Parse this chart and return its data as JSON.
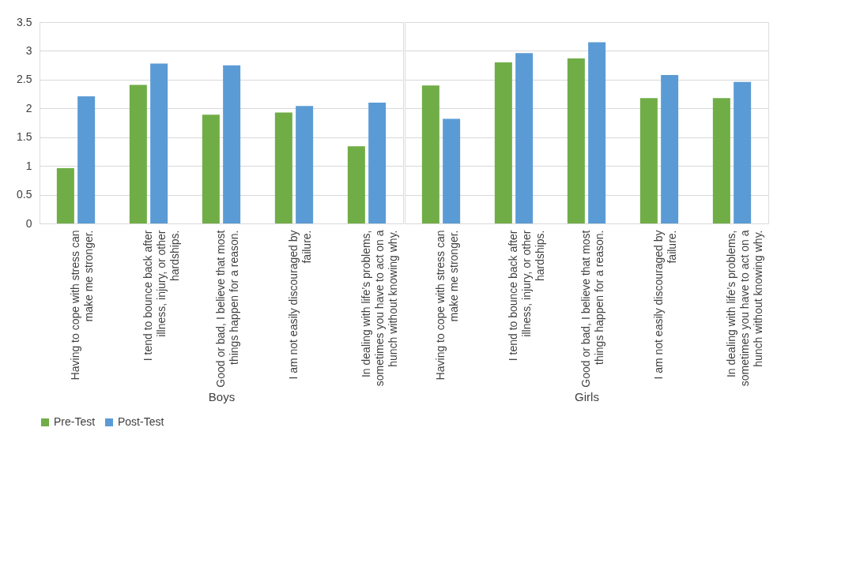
{
  "chart_data": [
    {
      "type": "bar",
      "xlabel": "Boys",
      "categories": [
        "Having to cope with stress can make me stronger.",
        "I tend to bounce back after illness, injury, or other hardships.",
        "Good or bad, I believe that most things happen for a reason.",
        "I am not easily discouraged by failure.",
        "In dealing with life’s problems, sometimes you have to act on a hunch without knowing why."
      ],
      "series": [
        {
          "name": "Pre-Test",
          "color": "#70ad47",
          "values": [
            0.96,
            2.41,
            1.89,
            1.93,
            1.34
          ]
        },
        {
          "name": "Post-Test",
          "color": "#5b9bd5",
          "values": [
            2.21,
            2.78,
            2.75,
            2.04,
            2.1
          ]
        }
      ],
      "ylim": [
        0,
        3.5
      ],
      "yticks": [
        0,
        0.5,
        1,
        1.5,
        2,
        2.5,
        3,
        3.5
      ],
      "grid": "y",
      "legend": "bottom"
    },
    {
      "type": "bar",
      "xlabel": "Girls",
      "categories": [
        "Having to cope with stress can make me stronger.",
        "I tend to bounce back after illness, injury, or other hardships.",
        "Good or bad, I believe that most things happen for a reason.",
        "I am not easily discouraged by failure.",
        "In dealing with life’s problems, sometimes you have to act on a hunch without knowing why."
      ],
      "series": [
        {
          "name": "Pre-Test",
          "color": "#70ad47",
          "values": [
            2.4,
            2.8,
            2.87,
            2.18,
            2.18
          ]
        },
        {
          "name": "Post-Test",
          "color": "#5b9bd5",
          "values": [
            1.82,
            2.96,
            3.15,
            2.58,
            2.46
          ]
        }
      ],
      "ylim": [
        0,
        3.5
      ],
      "yticks": [
        0,
        0.5,
        1,
        1.5,
        2,
        2.5,
        3,
        3.5
      ],
      "grid": "y",
      "tick_labels": "x"
    }
  ]
}
